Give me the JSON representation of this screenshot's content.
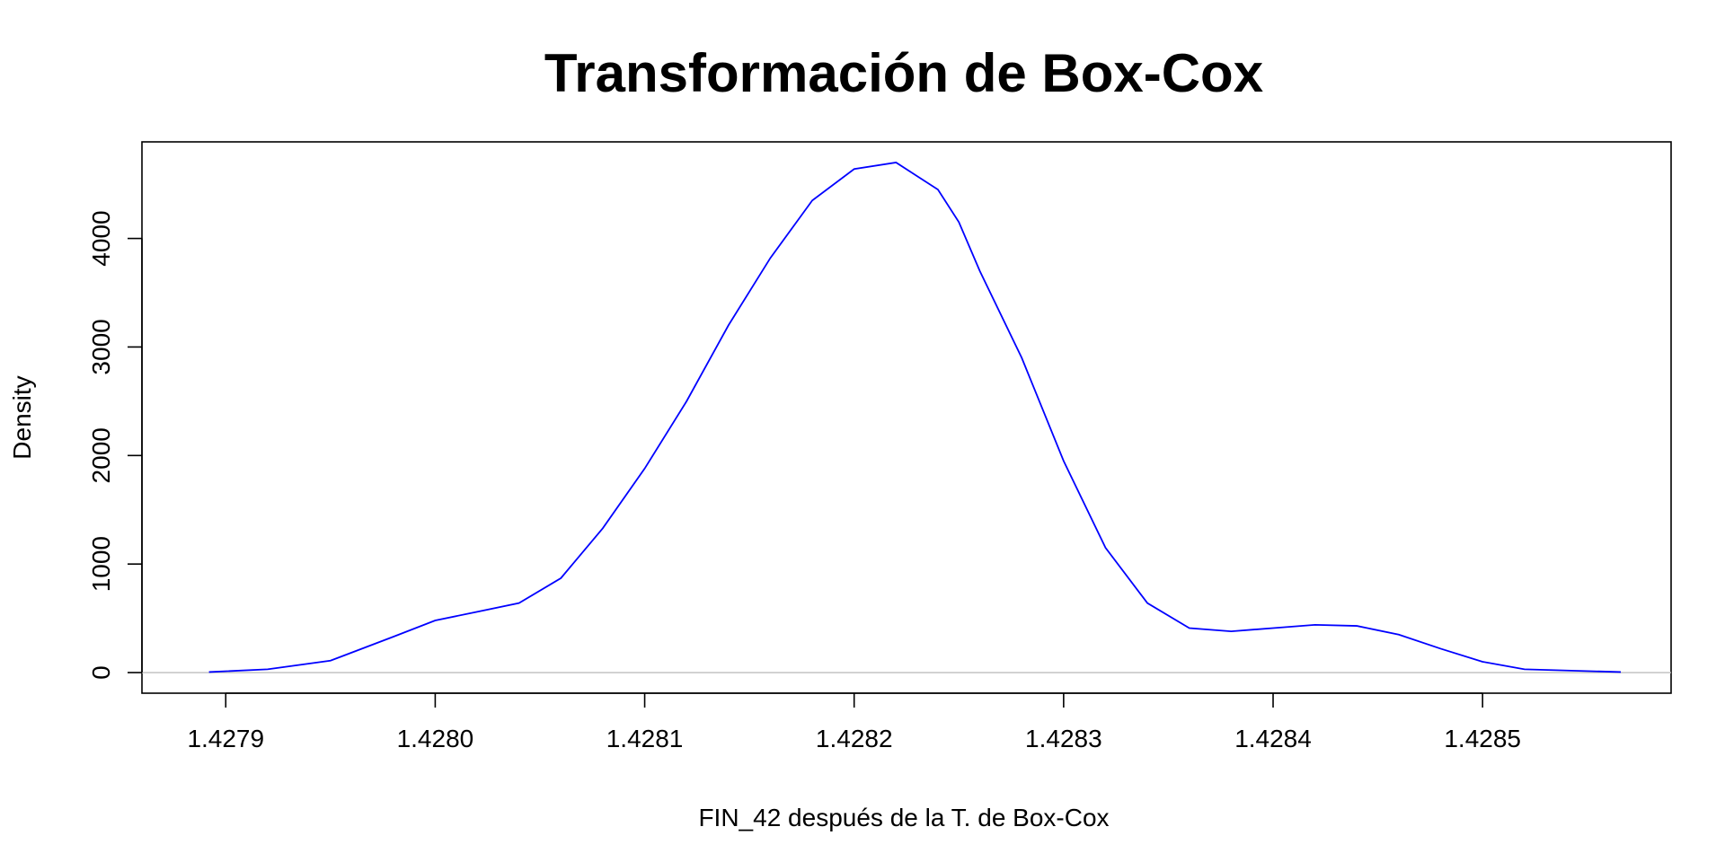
{
  "chart_data": {
    "type": "line",
    "title": "Transformación de Box-Cox",
    "xlabel": "FIN_42 después de la T. de Box-Cox",
    "ylabel": "Density",
    "xlim": [
      1.42786,
      1.42859
    ],
    "ylim": [
      -190,
      4890
    ],
    "x_ticks": [
      {
        "value": 1.4279,
        "label": "1.4279"
      },
      {
        "value": 1.428,
        "label": "1.4280"
      },
      {
        "value": 1.4281,
        "label": "1.4281"
      },
      {
        "value": 1.4282,
        "label": "1.4282"
      },
      {
        "value": 1.4283,
        "label": "1.4283"
      },
      {
        "value": 1.4284,
        "label": "1.4284"
      },
      {
        "value": 1.4285,
        "label": "1.4285"
      }
    ],
    "y_ticks": [
      {
        "value": 0,
        "label": "0"
      },
      {
        "value": 1000,
        "label": "1000"
      },
      {
        "value": 2000,
        "label": "2000"
      },
      {
        "value": 3000,
        "label": "3000"
      },
      {
        "value": 4000,
        "label": "4000"
      }
    ],
    "grid": false,
    "series": [
      {
        "color": "#0000ff",
        "x": [
          1.427892,
          1.42792,
          1.42795,
          1.42798,
          1.428,
          1.42802,
          1.42804,
          1.42806,
          1.42808,
          1.4281,
          1.42812,
          1.42814,
          1.42816,
          1.42818,
          1.4282,
          1.42822,
          1.42824,
          1.42825,
          1.42826,
          1.42828,
          1.4283,
          1.42832,
          1.42834,
          1.42836,
          1.42838,
          1.4284,
          1.42842,
          1.42844,
          1.42846,
          1.42848,
          1.4285,
          1.42852,
          1.428566
        ],
        "y": [
          5,
          30,
          110,
          330,
          480,
          560,
          640,
          870,
          1330,
          1880,
          2500,
          3200,
          3820,
          4350,
          4640,
          4700,
          4450,
          4150,
          3700,
          2900,
          1950,
          1150,
          640,
          410,
          380,
          410,
          440,
          430,
          350,
          220,
          100,
          30,
          5
        ]
      }
    ],
    "baseline": {
      "y": 0,
      "color": "#bebebe"
    }
  }
}
